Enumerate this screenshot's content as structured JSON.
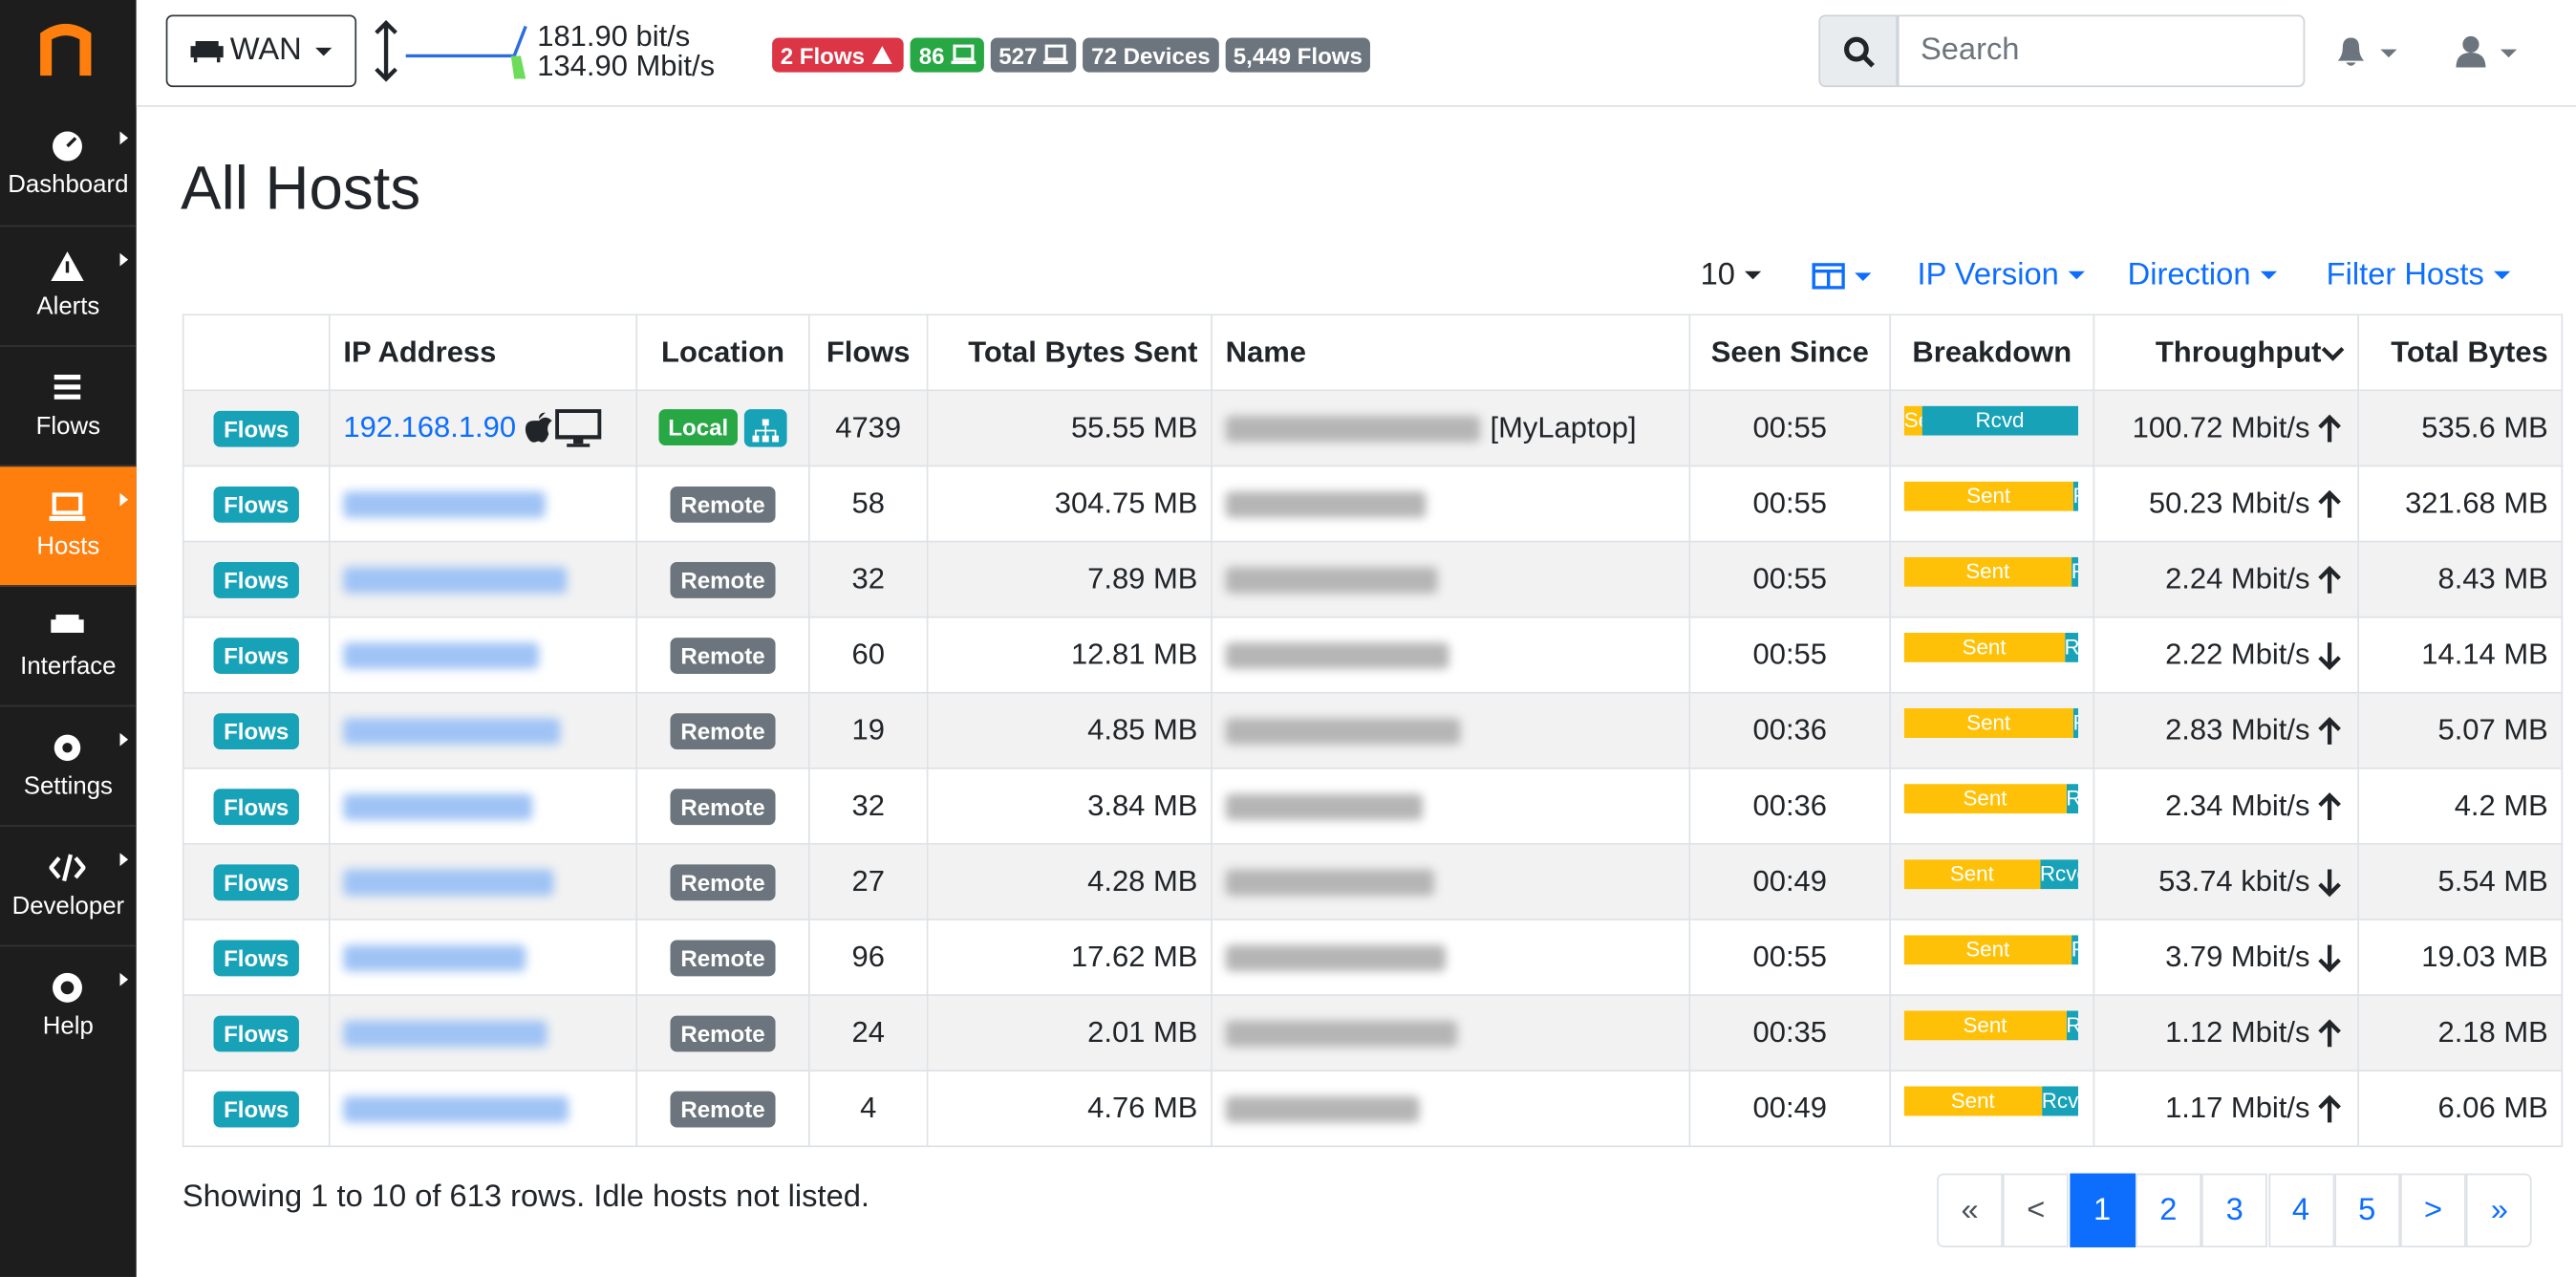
{
  "header": {
    "interface": "WAN",
    "traffic": [
      "181.90 bit/s",
      "134.90 Mbit/s"
    ],
    "badges": [
      {
        "text": "2 Flows",
        "color": "#dc3545",
        "icon": "alert"
      },
      {
        "text": "86",
        "color": "#28a745",
        "icon": "laptop"
      },
      {
        "text": "527",
        "color": "#6c757d",
        "icon": "laptop"
      },
      {
        "text": "72 Devices",
        "color": "#6c757d",
        "icon": null
      },
      {
        "text": "5,449 Flows",
        "color": "#6c757d",
        "icon": null
      }
    ],
    "search_placeholder": "Search"
  },
  "sidebar": {
    "items": [
      "Dashboard",
      "Alerts",
      "Flows",
      "Hosts",
      "Interface",
      "Settings",
      "Developer",
      "Help"
    ],
    "active": 3
  },
  "page": {
    "title": "All Hosts",
    "per_page": "10",
    "filters": [
      "IP Version",
      "Direction",
      "Filter Hosts"
    ]
  },
  "table": {
    "columns": [
      "IP Address",
      "Location",
      "Flows",
      "Total Bytes Sent",
      "Name",
      "Seen Since",
      "Breakdown",
      "Throughput",
      "Total Bytes"
    ],
    "row_action": "Flows",
    "breakdown_labels": [
      "Sent",
      "Rcvd"
    ],
    "rows": [
      {
        "ip": "192.168.1.90",
        "location": "Local",
        "flows": 4739,
        "bytes_sent": "55.55 MB",
        "name": "[MyLaptop]",
        "seen_since": "00:55",
        "sent_pct": 10,
        "throughput": "100.72 Mbit/s",
        "trend": "up",
        "total_bytes": "535.6 MB"
      },
      {
        "ip": null,
        "location": "Remote",
        "flows": 58,
        "bytes_sent": "304.75 MB",
        "name": null,
        "seen_since": "00:55",
        "sent_pct": 97,
        "throughput": "50.23 Mbit/s",
        "trend": "up",
        "total_bytes": "321.68 MB"
      },
      {
        "ip": null,
        "location": "Remote",
        "flows": 32,
        "bytes_sent": "7.89 MB",
        "name": null,
        "seen_since": "00:55",
        "sent_pct": 96,
        "throughput": "2.24 Mbit/s",
        "trend": "up",
        "total_bytes": "8.43 MB"
      },
      {
        "ip": null,
        "location": "Remote",
        "flows": 60,
        "bytes_sent": "12.81 MB",
        "name": null,
        "seen_since": "00:55",
        "sent_pct": 92,
        "throughput": "2.22 Mbit/s",
        "trend": "down",
        "total_bytes": "14.14 MB"
      },
      {
        "ip": null,
        "location": "Remote",
        "flows": 19,
        "bytes_sent": "4.85 MB",
        "name": null,
        "seen_since": "00:36",
        "sent_pct": 97,
        "throughput": "2.83 Mbit/s",
        "trend": "up",
        "total_bytes": "5.07 MB"
      },
      {
        "ip": null,
        "location": "Remote",
        "flows": 32,
        "bytes_sent": "3.84 MB",
        "name": null,
        "seen_since": "00:36",
        "sent_pct": 93,
        "throughput": "2.34 Mbit/s",
        "trend": "up",
        "total_bytes": "4.2 MB"
      },
      {
        "ip": null,
        "location": "Remote",
        "flows": 27,
        "bytes_sent": "4.28 MB",
        "name": null,
        "seen_since": "00:49",
        "sent_pct": 78,
        "throughput": "53.74 kbit/s",
        "trend": "down",
        "total_bytes": "5.54 MB"
      },
      {
        "ip": null,
        "location": "Remote",
        "flows": 96,
        "bytes_sent": "17.62 MB",
        "name": null,
        "seen_since": "00:55",
        "sent_pct": 96,
        "throughput": "3.79 Mbit/s",
        "trend": "down",
        "total_bytes": "19.03 MB"
      },
      {
        "ip": null,
        "location": "Remote",
        "flows": 24,
        "bytes_sent": "2.01 MB",
        "name": null,
        "seen_since": "00:35",
        "sent_pct": 93,
        "throughput": "1.12 Mbit/s",
        "trend": "up",
        "total_bytes": "2.18 MB"
      },
      {
        "ip": null,
        "location": "Remote",
        "flows": 4,
        "bytes_sent": "4.76 MB",
        "name": null,
        "seen_since": "00:49",
        "sent_pct": 79,
        "throughput": "1.17 Mbit/s",
        "trend": "up",
        "total_bytes": "6.06 MB"
      }
    ]
  },
  "footer": {
    "summary": "Showing 1 to 10 of 613 rows. Idle hosts not listed.",
    "pages": [
      "«",
      "<",
      "1",
      "2",
      "3",
      "4",
      "5",
      ">",
      "»"
    ],
    "active_page": 2
  }
}
